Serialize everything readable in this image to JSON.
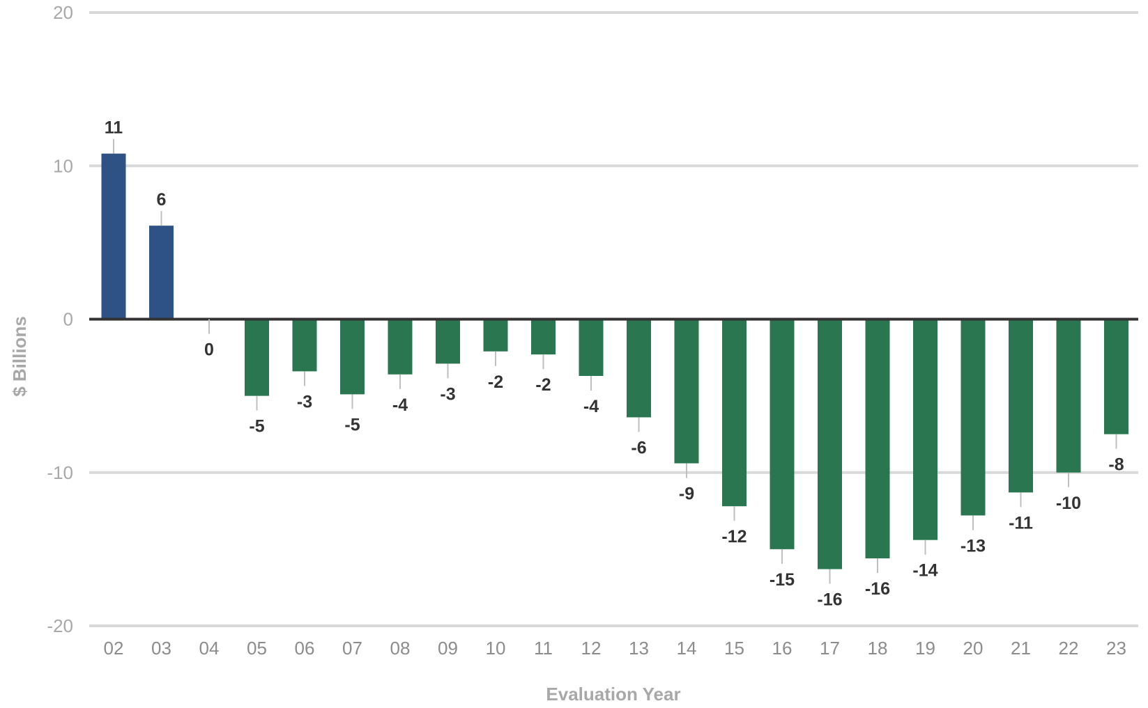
{
  "chart_data": {
    "type": "bar",
    "xlabel": "Evaluation Year",
    "ylabel": "$ Billions",
    "ylim": [
      -20,
      20
    ],
    "yticks": [
      20,
      10,
      0,
      -10,
      -20
    ],
    "grid": true,
    "categories": [
      "02",
      "03",
      "04",
      "05",
      "06",
      "07",
      "08",
      "09",
      "10",
      "11",
      "12",
      "13",
      "14",
      "15",
      "16",
      "17",
      "18",
      "19",
      "20",
      "21",
      "22",
      "23"
    ],
    "values": [
      10.8,
      6.1,
      0,
      -5.0,
      -3.4,
      -4.9,
      -3.6,
      -2.9,
      -2.1,
      -2.3,
      -3.7,
      -6.4,
      -9.4,
      -12.2,
      -15.0,
      -16.3,
      -15.6,
      -14.4,
      -12.8,
      -11.3,
      -10.0,
      -7.5
    ],
    "labels": [
      "11",
      "6",
      "0",
      "-5",
      "-3",
      "-5",
      "-4",
      "-3",
      "-2",
      "-2",
      "-4",
      "-6",
      "-9",
      "-12",
      "-15",
      "-16",
      "-16",
      "-14",
      "-13",
      "-11",
      "-10",
      "-8"
    ],
    "colors": {
      "positive": "#2e5283",
      "negative": "#2a7650",
      "grid": "#d9d9d9",
      "zero_line": "#333333",
      "leader": "#bfbfbf"
    }
  }
}
